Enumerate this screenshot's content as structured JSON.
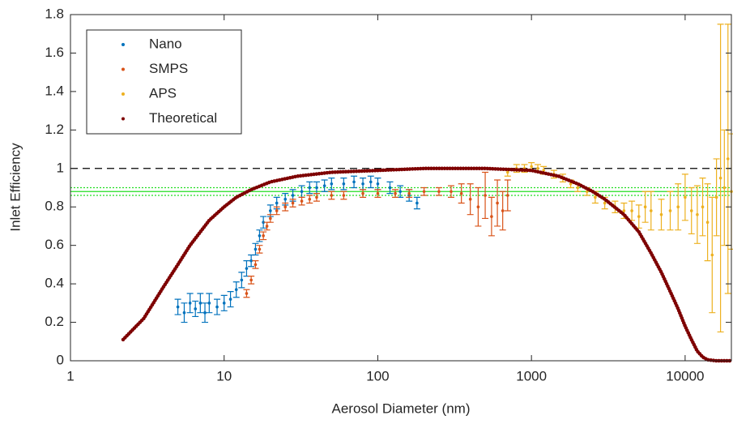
{
  "chart_data": {
    "type": "scatter",
    "x_label": "Aerosol Diameter (nm)",
    "y_label": "Inlet Efficiency",
    "xscale": "log",
    "xlim": [
      1,
      20000
    ],
    "ylim": [
      0,
      1.8
    ],
    "xticks": [
      1,
      10,
      100,
      1000,
      10000
    ],
    "yticks": [
      0,
      0.2,
      0.4,
      0.6,
      0.8,
      1,
      1.2,
      1.4,
      1.6,
      1.8
    ],
    "legend": "upper left",
    "reference_lines": [
      {
        "value": 1,
        "color": "#000000",
        "dash": "9,6"
      },
      {
        "value": 0.88,
        "color": "#22dd22"
      },
      {
        "value": 0.9,
        "color": "#22dd22",
        "dash": "2,2"
      },
      {
        "value": 0.86,
        "color": "#22dd22",
        "dash": "2,2"
      }
    ],
    "series": [
      {
        "name": "Nano",
        "color": "#0072bd",
        "x": [
          5,
          5.5,
          6,
          6.5,
          7,
          7.5,
          8,
          9,
          10,
          11,
          12,
          13,
          14,
          15,
          16,
          17,
          18,
          20,
          22,
          25,
          28,
          32,
          36,
          40,
          45,
          50,
          60,
          70,
          80,
          90,
          100,
          120,
          140,
          160,
          180
        ],
        "values": [
          0.28,
          0.25,
          0.3,
          0.27,
          0.3,
          0.25,
          0.3,
          0.28,
          0.3,
          0.32,
          0.37,
          0.42,
          0.48,
          0.52,
          0.58,
          0.65,
          0.72,
          0.78,
          0.82,
          0.84,
          0.86,
          0.88,
          0.9,
          0.9,
          0.91,
          0.92,
          0.92,
          0.93,
          0.92,
          0.93,
          0.92,
          0.9,
          0.88,
          0.86,
          0.82
        ],
        "errors": [
          0.04,
          0.05,
          0.05,
          0.04,
          0.05,
          0.05,
          0.05,
          0.04,
          0.04,
          0.04,
          0.04,
          0.04,
          0.04,
          0.03,
          0.03,
          0.03,
          0.03,
          0.03,
          0.03,
          0.03,
          0.03,
          0.03,
          0.03,
          0.03,
          0.03,
          0.03,
          0.03,
          0.03,
          0.03,
          0.03,
          0.03,
          0.03,
          0.03,
          0.03,
          0.03
        ]
      },
      {
        "name": "SMPS",
        "color": "#d95319",
        "x": [
          14,
          15,
          16,
          17,
          18,
          19,
          20,
          22,
          25,
          28,
          32,
          36,
          40,
          50,
          60,
          80,
          100,
          130,
          160,
          200,
          250,
          300,
          350,
          400,
          450,
          500,
          550,
          600,
          650,
          700
        ],
        "values": [
          0.35,
          0.42,
          0.5,
          0.58,
          0.65,
          0.7,
          0.74,
          0.78,
          0.8,
          0.82,
          0.83,
          0.84,
          0.85,
          0.86,
          0.86,
          0.87,
          0.87,
          0.87,
          0.87,
          0.88,
          0.88,
          0.88,
          0.87,
          0.84,
          0.8,
          0.86,
          0.75,
          0.82,
          0.78,
          0.86
        ],
        "errors": [
          0.02,
          0.02,
          0.02,
          0.02,
          0.02,
          0.02,
          0.02,
          0.02,
          0.02,
          0.02,
          0.02,
          0.02,
          0.02,
          0.02,
          0.02,
          0.02,
          0.02,
          0.02,
          0.02,
          0.02,
          0.02,
          0.03,
          0.05,
          0.08,
          0.1,
          0.12,
          0.1,
          0.12,
          0.1,
          0.08
        ]
      },
      {
        "name": "APS",
        "color": "#edb120",
        "x": [
          700,
          800,
          900,
          1000,
          1100,
          1200,
          1400,
          1600,
          1800,
          2000,
          2300,
          2600,
          3000,
          3500,
          4000,
          4500,
          5000,
          5500,
          6000,
          7000,
          8000,
          9000,
          10000,
          11000,
          12000,
          13000,
          14000,
          15000,
          16000,
          17000,
          18000,
          19000,
          20000
        ],
        "values": [
          0.98,
          1.0,
          1.0,
          1.01,
          1.0,
          0.99,
          0.97,
          0.95,
          0.92,
          0.9,
          0.88,
          0.85,
          0.82,
          0.8,
          0.78,
          0.78,
          0.75,
          0.8,
          0.78,
          0.76,
          0.78,
          0.8,
          0.85,
          0.78,
          0.76,
          0.8,
          0.72,
          0.55,
          0.85,
          0.95,
          0.9,
          1.05,
          0.88
        ],
        "errors": [
          0.02,
          0.02,
          0.02,
          0.02,
          0.02,
          0.02,
          0.02,
          0.02,
          0.02,
          0.02,
          0.02,
          0.03,
          0.03,
          0.03,
          0.04,
          0.05,
          0.06,
          0.08,
          0.1,
          0.08,
          0.1,
          0.12,
          0.12,
          0.12,
          0.15,
          0.15,
          0.2,
          0.3,
          0.2,
          0.8,
          0.3,
          0.7,
          0.3
        ]
      },
      {
        "name": "Theoretical",
        "color": "#7e0000",
        "style": "line",
        "x": [
          2.2,
          3,
          4,
          5,
          6,
          7,
          8,
          10,
          12,
          15,
          20,
          30,
          50,
          100,
          200,
          500,
          1000,
          1500,
          2000,
          2500,
          3000,
          4000,
          5000,
          6000,
          7000,
          8000,
          9000,
          10000,
          11000,
          12000,
          13000,
          14000,
          16000,
          18000,
          20000
        ],
        "values": [
          0.11,
          0.22,
          0.38,
          0.5,
          0.6,
          0.67,
          0.73,
          0.8,
          0.85,
          0.89,
          0.93,
          0.96,
          0.98,
          0.99,
          1.0,
          1.0,
          0.99,
          0.96,
          0.92,
          0.88,
          0.84,
          0.76,
          0.67,
          0.56,
          0.46,
          0.36,
          0.27,
          0.18,
          0.11,
          0.05,
          0.02,
          0.005,
          0,
          0,
          0
        ]
      }
    ]
  }
}
